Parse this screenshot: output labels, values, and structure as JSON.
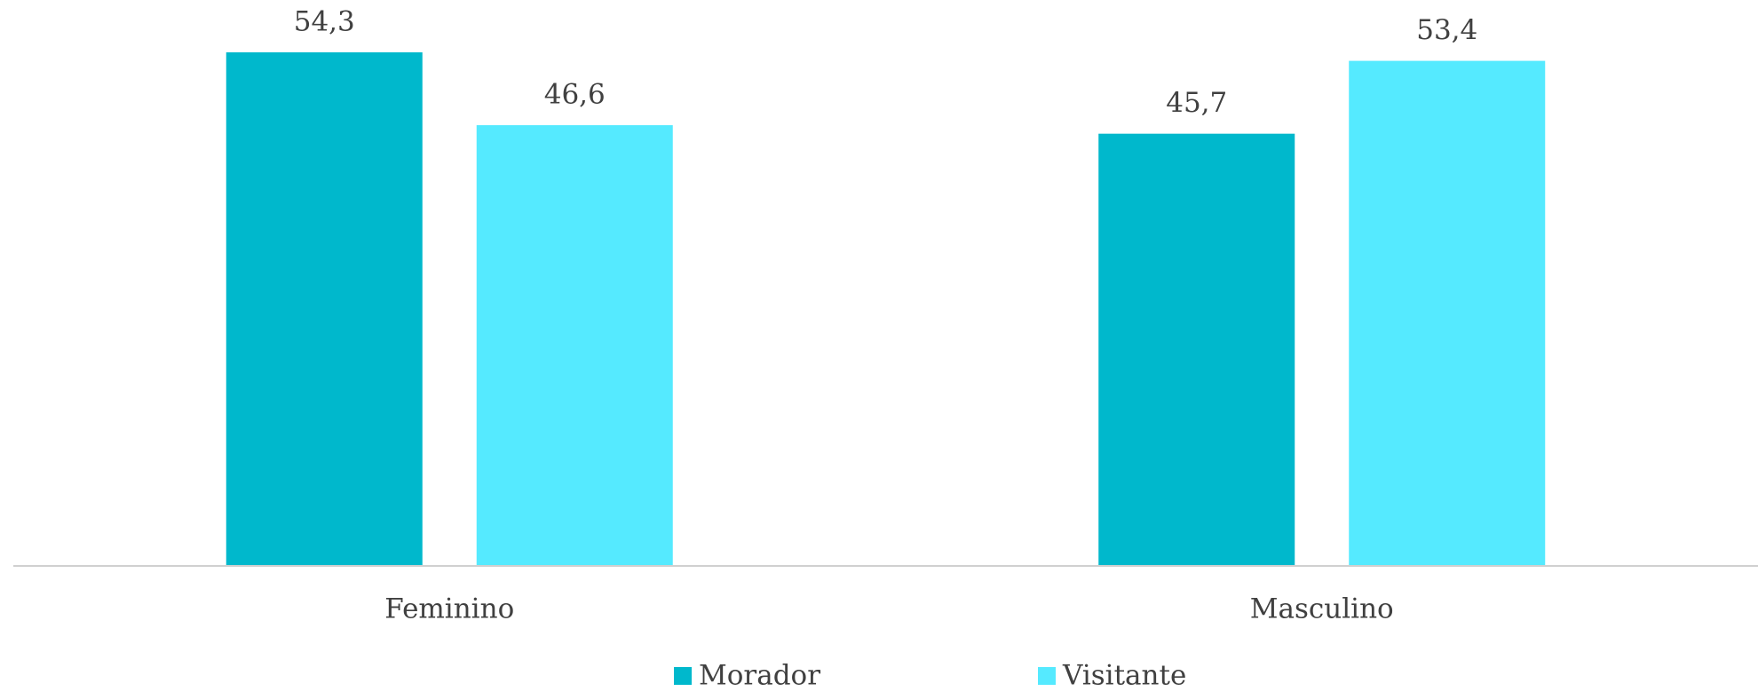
{
  "chart_data": {
    "type": "bar",
    "categories": [
      "Feminino",
      "Masculino"
    ],
    "series": [
      {
        "name": "Morador",
        "color": "#00b8cc",
        "values": [
          54.3,
          45.7
        ],
        "value_labels": [
          "54,3",
          "45,7"
        ]
      },
      {
        "name": "Visitante",
        "color": "#55eaff",
        "values": [
          46.6,
          53.4
        ],
        "value_labels": [
          "46,6",
          "53,4"
        ]
      }
    ],
    "legend": "bottom"
  }
}
